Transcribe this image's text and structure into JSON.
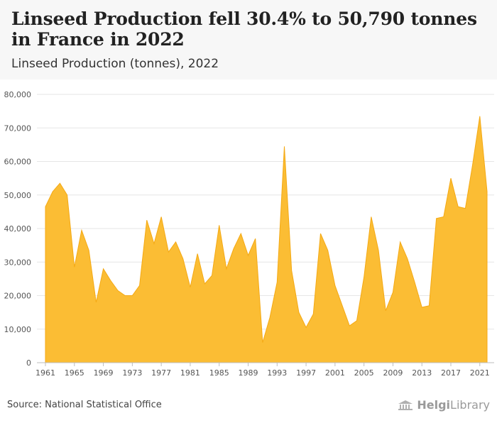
{
  "header": {
    "title": "Linseed Production fell 30.4% to 50,790 tonnes in France in 2022",
    "subtitle": "Linseed Production (tonnes), 2022"
  },
  "footer": {
    "source": "Source: National Statistical Office",
    "brand_bold": "Helgi",
    "brand_rest": "Library",
    "brand_icon": "bank-building-icon"
  },
  "colors": {
    "area_fill": "#fbbd34",
    "area_stroke": "#f4a914",
    "grid": "#e6e6e6",
    "tick_text": "#555555"
  },
  "chart_data": {
    "type": "area",
    "title": "Linseed Production fell 30.4% to 50,790 tonnes in France in 2022",
    "subtitle": "Linseed Production (tonnes), 2022",
    "ylim": [
      0,
      80000
    ],
    "y_ticks": [
      0,
      10000,
      20000,
      30000,
      40000,
      50000,
      60000,
      70000,
      80000
    ],
    "y_tick_labels": [
      "0",
      "10,000",
      "20,000",
      "30,000",
      "40,000",
      "50,000",
      "60,000",
      "70,000",
      "80,000"
    ],
    "x_ticks": [
      1961,
      1965,
      1969,
      1973,
      1977,
      1981,
      1985,
      1989,
      1993,
      1997,
      2001,
      2005,
      2009,
      2013,
      2017,
      2021
    ],
    "grid": true,
    "x": [
      1961,
      1962,
      1963,
      1964,
      1965,
      1966,
      1967,
      1968,
      1969,
      1970,
      1971,
      1972,
      1973,
      1974,
      1975,
      1976,
      1977,
      1978,
      1979,
      1980,
      1981,
      1982,
      1983,
      1984,
      1985,
      1986,
      1987,
      1988,
      1989,
      1990,
      1991,
      1992,
      1993,
      1994,
      1995,
      1996,
      1997,
      1998,
      1999,
      2000,
      2001,
      2002,
      2003,
      2004,
      2005,
      2006,
      2007,
      2008,
      2009,
      2010,
      2011,
      2012,
      2013,
      2014,
      2015,
      2016,
      2017,
      2018,
      2019,
      2020,
      2021,
      2022
    ],
    "values": [
      46500,
      51000,
      53500,
      50000,
      28500,
      39500,
      33500,
      18000,
      28000,
      24500,
      21500,
      20000,
      20000,
      23000,
      42500,
      35500,
      43500,
      33000,
      36000,
      31000,
      22500,
      32500,
      23500,
      26000,
      41000,
      28000,
      34000,
      38500,
      32000,
      37000,
      6000,
      13500,
      24000,
      64500,
      27500,
      15000,
      10500,
      14500,
      38500,
      33500,
      23000,
      17000,
      11000,
      12500,
      25500,
      43500,
      33500,
      15500,
      21000,
      36000,
      31000,
      24000,
      16500,
      17000,
      43000,
      43500,
      55000,
      46500,
      46000,
      59000,
      73500,
      51000
    ]
  }
}
